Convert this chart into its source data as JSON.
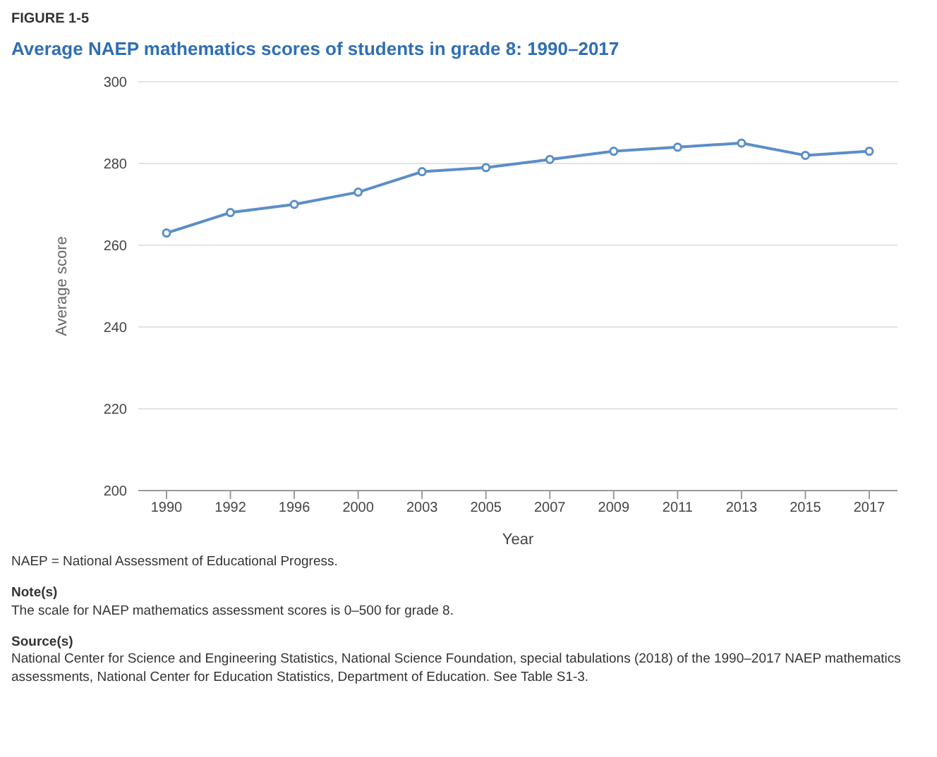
{
  "chart_data": {
    "type": "line",
    "title": "Average NAEP mathematics scores of students in grade 8: 1990–2017",
    "xlabel": "Year",
    "ylabel": "Average score",
    "categories": [
      "1990",
      "1992",
      "1996",
      "2000",
      "2003",
      "2005",
      "2007",
      "2009",
      "2011",
      "2013",
      "2015",
      "2017"
    ],
    "series": [
      {
        "color": "#5b8ec9",
        "values": [
          263,
          268,
          270,
          273,
          278,
          279,
          281,
          283,
          284,
          285,
          282,
          283
        ]
      }
    ],
    "ylim": [
      200,
      300
    ],
    "yticks": [
      200,
      220,
      240,
      260,
      280,
      300
    ],
    "grid": "y",
    "legend": false,
    "marker": "circle",
    "line_style": "solid",
    "annotations": [
      "FIGURE 1-5",
      "NAEP = National Assessment of Educational Progress.",
      "Note(s)",
      "The scale for NAEP mathematics assessment scores is 0–500 for grade 8.",
      "Source(s)",
      "National Center for Science and Engineering Statistics, National Science Foundation, special tabulations (2018) of the 1990–2017 NAEP mathematics assessments, National Center for Education Statistics, Department of Education. See Table S1-3."
    ]
  }
}
